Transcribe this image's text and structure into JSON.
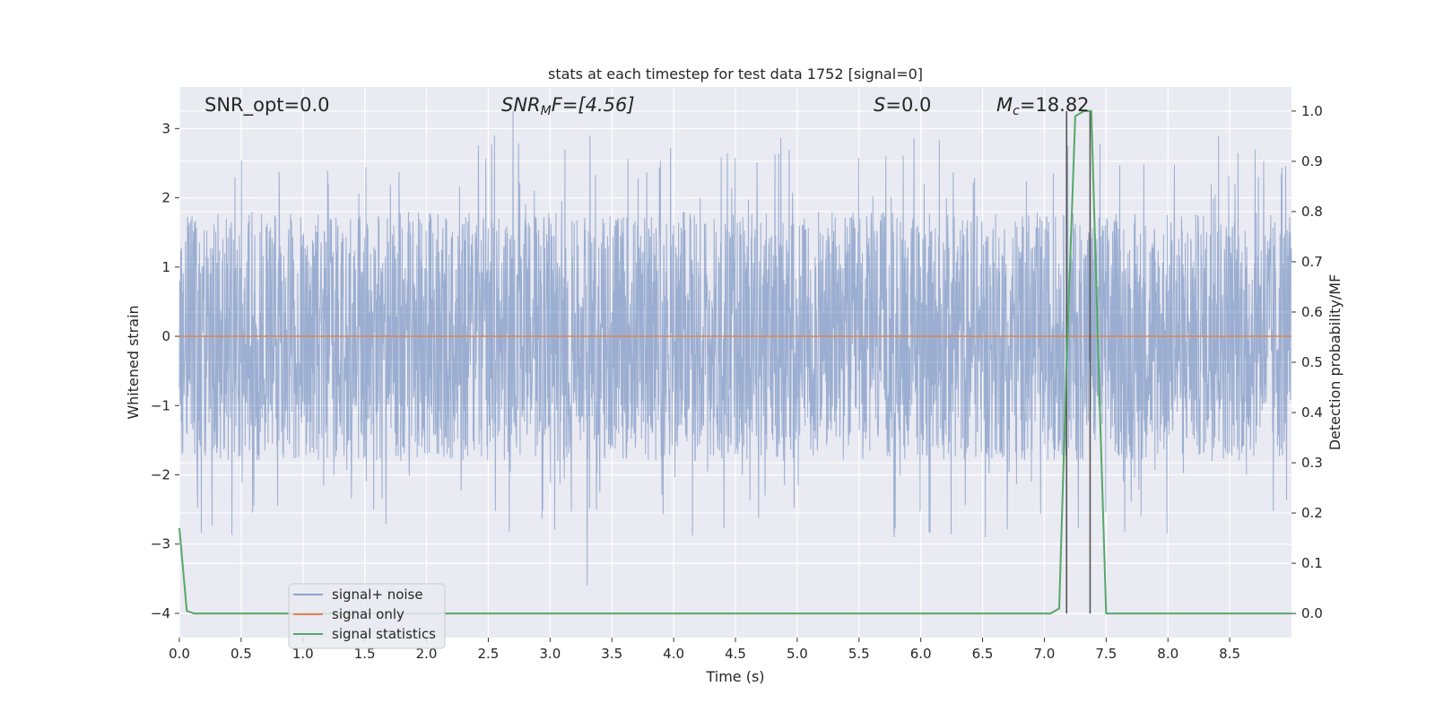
{
  "chart_data": {
    "type": "line",
    "title": "stats at each timestep for test data 1752 [signal=0]",
    "xlabel": "Time (s)",
    "ylabel_left": "Whitened strain",
    "ylabel_right": "Detection probability/MF",
    "xlim": [
      0.0,
      9.0
    ],
    "ylim_left": [
      -4.35,
      3.6
    ],
    "ylim_right": [
      -0.048,
      1.048
    ],
    "grid": true,
    "legend_position": "lower-left",
    "x_ticks": [
      "0.0",
      "0.5",
      "1.0",
      "1.5",
      "2.0",
      "2.5",
      "3.0",
      "3.5",
      "4.0",
      "4.5",
      "5.0",
      "5.5",
      "6.0",
      "6.5",
      "7.0",
      "7.5",
      "8.0",
      "8.5"
    ],
    "y_ticks_left": [
      "3",
      "2",
      "1",
      "0",
      "−1",
      "−2",
      "−3",
      "−4"
    ],
    "y_ticks_right": [
      "1.0",
      "0.9",
      "0.8",
      "0.7",
      "0.6",
      "0.5",
      "0.4",
      "0.3",
      "0.2",
      "0.1",
      "0.0"
    ],
    "annotations": [
      {
        "id": "snr_opt",
        "text": "SNR_opt=0.0"
      },
      {
        "id": "snr_mf",
        "base": "SNR",
        "sub": "M",
        "rest": "F=[4.56]"
      },
      {
        "id": "s_value",
        "base": "S",
        "rest": "=0.0"
      },
      {
        "id": "mc_value",
        "base": "M",
        "sub": "c",
        "rest": "=18.82"
      }
    ],
    "series": [
      {
        "name": "signal+ noise",
        "color": "#4c72b0",
        "alpha": 0.5,
        "kind": "whitened-noise",
        "amplitude_typical": 1.8,
        "extremes": [
          3.25,
          -3.6
        ]
      },
      {
        "name": "signal only",
        "color": "#dd8452",
        "values_constant": 0.0
      },
      {
        "name": "signal statistics",
        "color": "#55a868",
        "axis": "right",
        "x": [
          0.0,
          0.06,
          0.12,
          7.05,
          7.12,
          7.18,
          7.25,
          7.32,
          7.38,
          7.45,
          7.5,
          9.0
        ],
        "y": [
          0.17,
          0.005,
          0.0,
          0.0,
          0.01,
          0.5,
          0.99,
          1.0,
          1.0,
          0.4,
          0.0,
          0.0
        ]
      }
    ],
    "vertical_markers": {
      "color": "#555555",
      "x": [
        7.18,
        7.37
      ],
      "y_range": [
        0.0,
        1.0
      ]
    }
  }
}
